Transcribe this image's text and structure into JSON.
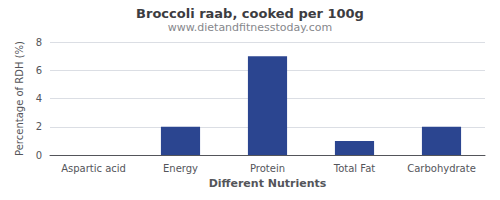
{
  "chart_data": {
    "type": "bar",
    "title": "Broccoli raab, cooked per 100g",
    "subtitle": "www.dietandfitnesstoday.com",
    "xlabel": "Different Nutrients",
    "ylabel": "Percentage of RDH (%)",
    "categories": [
      "Aspartic acid",
      "Energy",
      "Protein",
      "Total Fat",
      "Carbohydrate"
    ],
    "values": [
      0.0,
      2.0,
      7.0,
      1.0,
      2.0
    ],
    "color": "#2b4590",
    "ylim": [
      0,
      8
    ],
    "yticks": [
      0,
      2,
      4,
      6,
      8
    ],
    "grid": true
  }
}
